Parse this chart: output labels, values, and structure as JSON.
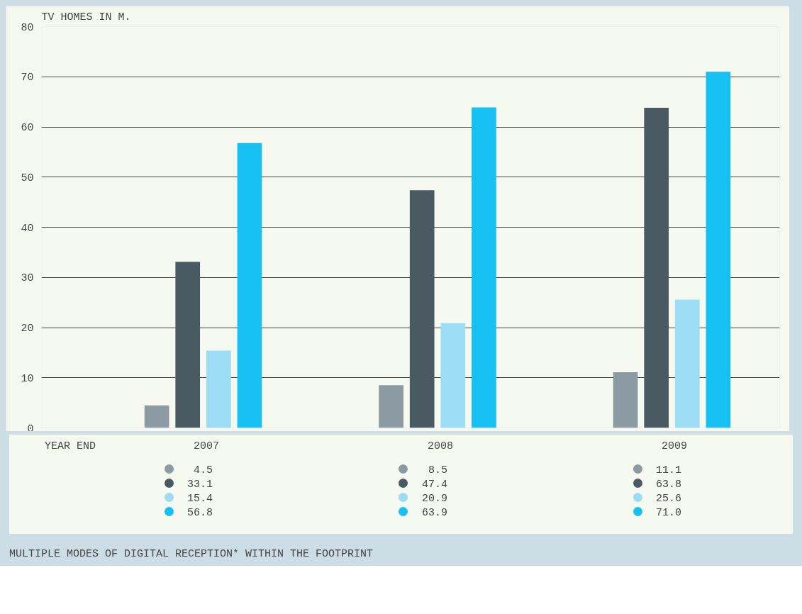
{
  "chart_data": {
    "type": "bar",
    "title": "TV HOMES IN M.",
    "xlabel": "YEAR END",
    "categories": [
      "2007",
      "2008",
      "2009"
    ],
    "series": [
      {
        "color": "#8c9aa3",
        "values": [
          4.5,
          8.5,
          11.1
        ],
        "value_labels": [
          "4.5",
          "8.5",
          "11.1"
        ]
      },
      {
        "color": "#4a5a63",
        "values": [
          33.1,
          47.4,
          63.8
        ],
        "value_labels": [
          "33.1",
          "47.4",
          "63.8"
        ]
      },
      {
        "color": "#9ddcf5",
        "values": [
          15.4,
          20.9,
          25.6
        ],
        "value_labels": [
          "15.4",
          "20.9",
          "25.6"
        ]
      },
      {
        "color": "#17c0f2",
        "values": [
          56.8,
          63.9,
          71.0
        ],
        "value_labels": [
          "56.8",
          "63.9",
          "71.0"
        ]
      }
    ],
    "ylim": [
      0,
      80
    ],
    "yticks": [
      0,
      10,
      20,
      30,
      40,
      50,
      60,
      70,
      80
    ],
    "grid": "y",
    "annotations": [
      "MULTIPLE MODES OF DIGITAL RECEPTION* WITHIN THE FOOTPRINT"
    ]
  }
}
